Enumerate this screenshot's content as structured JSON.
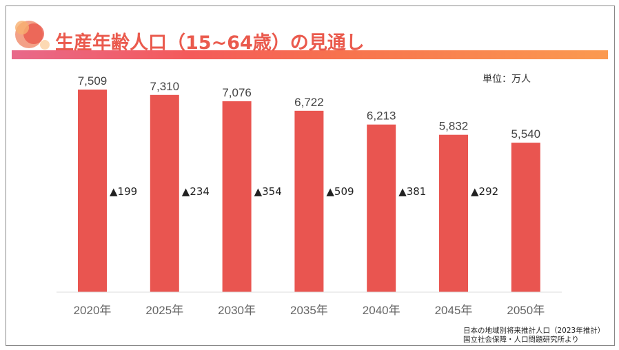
{
  "title": "生産年齢人口（15~64歳）の見通し",
  "unit_label": "単位：万人",
  "source": [
    "日本の地域別将来推計人口（2023年推計）",
    "国立社会保障・人口問題研究所より"
  ],
  "colors": {
    "bar": "#e95550",
    "title": "#ea5a4d"
  },
  "chart_data": {
    "type": "bar",
    "categories": [
      "2020年",
      "2025年",
      "2030年",
      "2035年",
      "2040年",
      "2045年",
      "2050年"
    ],
    "values": [
      7509,
      7310,
      7076,
      6722,
      6213,
      5832,
      5540
    ],
    "value_labels": [
      "7,509",
      "7,310",
      "7,076",
      "6,722",
      "6,213",
      "5,832",
      "5,540"
    ],
    "decrease_labels": [
      "▲199",
      "▲234",
      "▲354",
      "▲509",
      "▲381",
      "▲292"
    ],
    "ylim": [
      0,
      7509
    ],
    "grid": false
  }
}
